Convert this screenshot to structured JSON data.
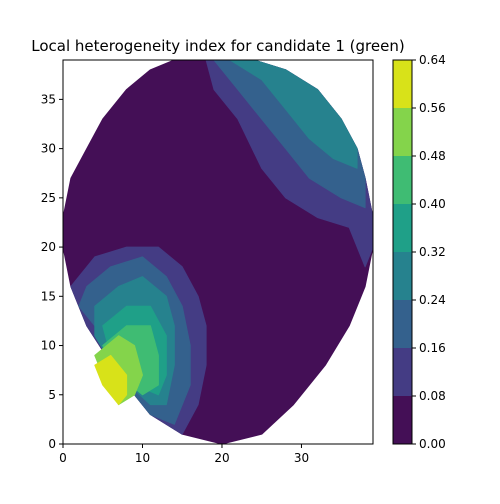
{
  "chart_data": {
    "type": "heatmap",
    "subtype": "filled-contour",
    "title": "Local heterogeneity index for candidate 1 (green)",
    "xlabel": "",
    "ylabel": "",
    "xlim": [
      0,
      39
    ],
    "ylim": [
      0,
      39
    ],
    "x_ticks": [
      0,
      10,
      20,
      30
    ],
    "y_ticks": [
      0,
      5,
      10,
      15,
      20,
      25,
      30,
      35
    ],
    "grid": false,
    "colormap": "viridis",
    "colorbar": {
      "levels": [
        0.0,
        0.08,
        0.16,
        0.24,
        0.32,
        0.4,
        0.48,
        0.56,
        0.64
      ],
      "tick_labels": [
        "0.00",
        "0.08",
        "0.16",
        "0.24",
        "0.32",
        "0.40",
        "0.48",
        "0.56",
        "0.64"
      ],
      "colors": [
        "#440f56",
        "#443c84",
        "#34618d",
        "#26828e",
        "#1fa088",
        "#3fbc73",
        "#84d44b",
        "#d8e219"
      ]
    },
    "regions": [
      {
        "level_index": 0,
        "range": [
          0.0,
          0.08
        ],
        "outline": [
          [
            20,
            0
          ],
          [
            15,
            1
          ],
          [
            11,
            3
          ],
          [
            7,
            7
          ],
          [
            3,
            12
          ],
          [
            1,
            16
          ],
          [
            0,
            20
          ],
          [
            0,
            23
          ],
          [
            1,
            27
          ],
          [
            3,
            30
          ],
          [
            5,
            33
          ],
          [
            8,
            36
          ],
          [
            11,
            38
          ],
          [
            14,
            39
          ],
          [
            24,
            39
          ],
          [
            28,
            38
          ],
          [
            32,
            36
          ],
          [
            35,
            33
          ],
          [
            37,
            30
          ],
          [
            38,
            27
          ],
          [
            39,
            23
          ],
          [
            39,
            20
          ],
          [
            38,
            16
          ],
          [
            36,
            12
          ],
          [
            33,
            8
          ],
          [
            29,
            4
          ],
          [
            25,
            1
          ]
        ]
      },
      {
        "level_index": 1,
        "range": [
          0.08,
          0.16
        ],
        "outline": [
          [
            18,
            39
          ],
          [
            24,
            39
          ],
          [
            28,
            38
          ],
          [
            32,
            36
          ],
          [
            35,
            33
          ],
          [
            37,
            30
          ],
          [
            38,
            27
          ],
          [
            39,
            23
          ],
          [
            39,
            20
          ],
          [
            38,
            18
          ],
          [
            36,
            22
          ],
          [
            32,
            23
          ],
          [
            28,
            25
          ],
          [
            25,
            28
          ],
          [
            22,
            33
          ],
          [
            19,
            36
          ]
        ]
      },
      {
        "level_index": 1,
        "range": [
          0.08,
          0.16
        ],
        "outline": [
          [
            2,
            17
          ],
          [
            4,
            19
          ],
          [
            8,
            20
          ],
          [
            12,
            20
          ],
          [
            15,
            18
          ],
          [
            17,
            15
          ],
          [
            18,
            12
          ],
          [
            18,
            8
          ],
          [
            17,
            4
          ],
          [
            15,
            1
          ],
          [
            11,
            3
          ],
          [
            7,
            7
          ],
          [
            3,
            12
          ],
          [
            1,
            16
          ]
        ]
      },
      {
        "level_index": 2,
        "range": [
          0.16,
          0.24
        ],
        "outline": [
          [
            19,
            39
          ],
          [
            24,
            39
          ],
          [
            28,
            38
          ],
          [
            32,
            36
          ],
          [
            35,
            33
          ],
          [
            37,
            30
          ],
          [
            38,
            27
          ],
          [
            38,
            24
          ],
          [
            35,
            25
          ],
          [
            31,
            27
          ],
          [
            28,
            30
          ],
          [
            25,
            33
          ],
          [
            22,
            36
          ]
        ]
      },
      {
        "level_index": 2,
        "range": [
          0.16,
          0.24
        ],
        "outline": [
          [
            3,
            16
          ],
          [
            6,
            18
          ],
          [
            10,
            19
          ],
          [
            13,
            17
          ],
          [
            15,
            14
          ],
          [
            16,
            10
          ],
          [
            16,
            6
          ],
          [
            14,
            2
          ],
          [
            11,
            3
          ],
          [
            7,
            7
          ],
          [
            4,
            12
          ],
          [
            2,
            14
          ]
        ]
      },
      {
        "level_index": 3,
        "range": [
          0.24,
          0.32
        ],
        "outline": [
          [
            21,
            39
          ],
          [
            24,
            39
          ],
          [
            28,
            38
          ],
          [
            32,
            36
          ],
          [
            35,
            33
          ],
          [
            37,
            30
          ],
          [
            37,
            28
          ],
          [
            34,
            29
          ],
          [
            31,
            31
          ],
          [
            28,
            34
          ],
          [
            25,
            37
          ]
        ]
      },
      {
        "level_index": 3,
        "range": [
          0.24,
          0.32
        ],
        "outline": [
          [
            4,
            14
          ],
          [
            7,
            16
          ],
          [
            10,
            17
          ],
          [
            13,
            15
          ],
          [
            14,
            12
          ],
          [
            14,
            8
          ],
          [
            13,
            4
          ],
          [
            11,
            4
          ],
          [
            7,
            7
          ],
          [
            4,
            11
          ]
        ]
      },
      {
        "level_index": 4,
        "range": [
          0.32,
          0.4
        ],
        "outline": [
          [
            5,
            12
          ],
          [
            8,
            14
          ],
          [
            11,
            14
          ],
          [
            13,
            11
          ],
          [
            13,
            7
          ],
          [
            12,
            5
          ],
          [
            9,
            6
          ],
          [
            6,
            9
          ]
        ]
      },
      {
        "level_index": 5,
        "range": [
          0.4,
          0.48
        ],
        "outline": [
          [
            5,
            10
          ],
          [
            8,
            12
          ],
          [
            11,
            12
          ],
          [
            12,
            9
          ],
          [
            12,
            6
          ],
          [
            10,
            5
          ],
          [
            7,
            7
          ]
        ]
      },
      {
        "level_index": 6,
        "range": [
          0.48,
          0.56
        ],
        "outline": [
          [
            4,
            9
          ],
          [
            7,
            11
          ],
          [
            9,
            10
          ],
          [
            10,
            7
          ],
          [
            9,
            5
          ],
          [
            7,
            4
          ],
          [
            5,
            7
          ]
        ]
      },
      {
        "level_index": 7,
        "range": [
          0.56,
          0.64
        ],
        "outline": [
          [
            4,
            8
          ],
          [
            6,
            9
          ],
          [
            8,
            7
          ],
          [
            8,
            5
          ],
          [
            7,
            4
          ],
          [
            5,
            6
          ]
        ]
      }
    ]
  }
}
